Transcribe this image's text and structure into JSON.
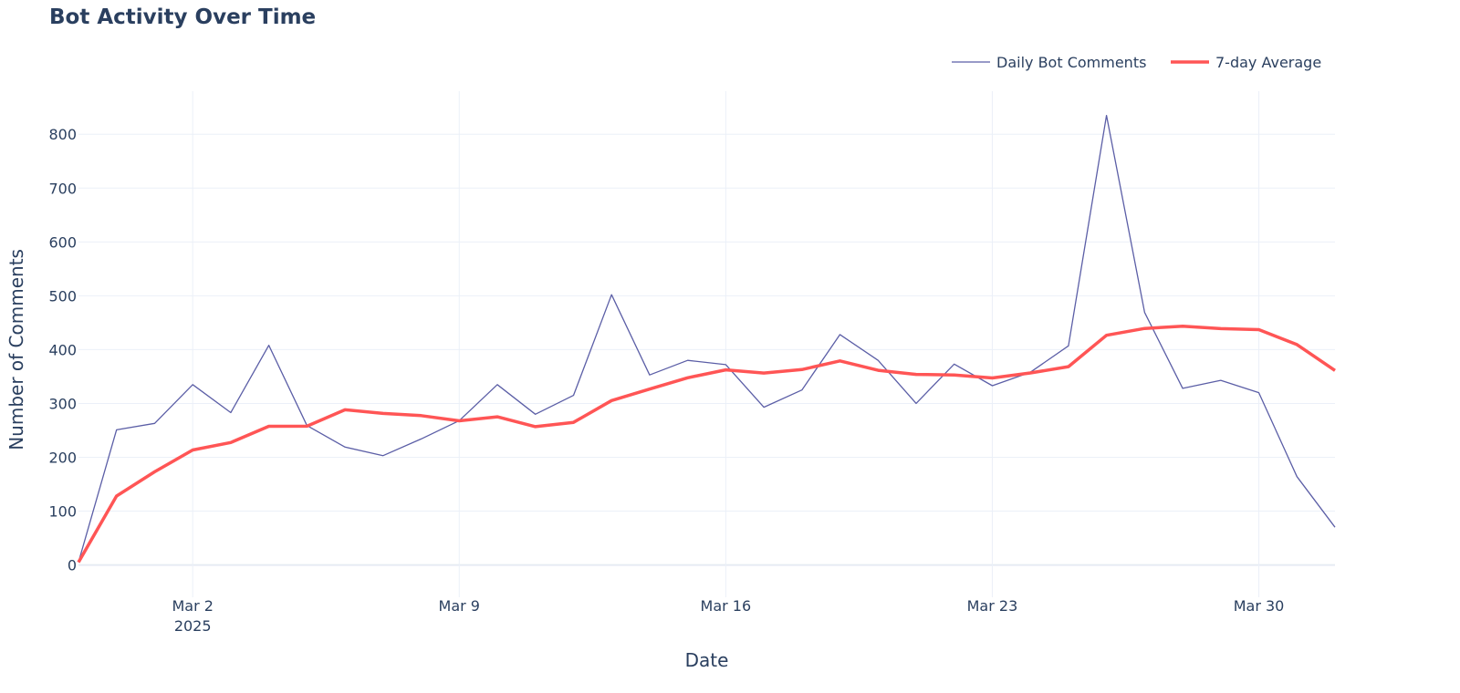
{
  "chart_data": {
    "type": "line",
    "title": "Bot Activity Over Time",
    "xlabel": "Date",
    "ylabel": "Number of Comments",
    "x_start": "2025-02-28",
    "x_tick_labels": [
      {
        "day": 2,
        "label": "Mar 2",
        "sub": "2025"
      },
      {
        "day": 9,
        "label": "Mar 9",
        "sub": ""
      },
      {
        "day": 16,
        "label": "Mar 16",
        "sub": ""
      },
      {
        "day": 23,
        "label": "Mar 23",
        "sub": ""
      },
      {
        "day": 30,
        "label": "Mar 30",
        "sub": ""
      }
    ],
    "y_ticks": [
      0,
      100,
      200,
      300,
      400,
      500,
      600,
      700,
      800
    ],
    "ylim": [
      -60,
      880
    ],
    "legend_position": "top-right",
    "series": [
      {
        "name": "Daily Bot Comments",
        "color": "#5b5ea6",
        "values": [
          5,
          251,
          263,
          335,
          283,
          408,
          259,
          219,
          203,
          234,
          268,
          335,
          280,
          315,
          502,
          353,
          380,
          372,
          293,
          325,
          428,
          380,
          300,
          373,
          333,
          358,
          407,
          835,
          469,
          328,
          343,
          320,
          164,
          70
        ]
      },
      {
        "name": "7-day Average",
        "color": "#ff5555",
        "values": [
          5,
          128,
          173,
          213.5,
          227.4,
          257.5,
          257.7,
          288.3,
          281.4,
          277.3,
          267.7,
          275.1,
          256.9,
          264.9,
          305.3,
          326.7,
          347.6,
          362.4,
          356.4,
          362.9,
          379,
          361.6,
          354,
          353,
          347.4,
          356.7,
          368.4,
          426.6,
          439.3,
          443.3,
          439,
          437.1,
          409.4,
          361.3
        ]
      }
    ]
  }
}
